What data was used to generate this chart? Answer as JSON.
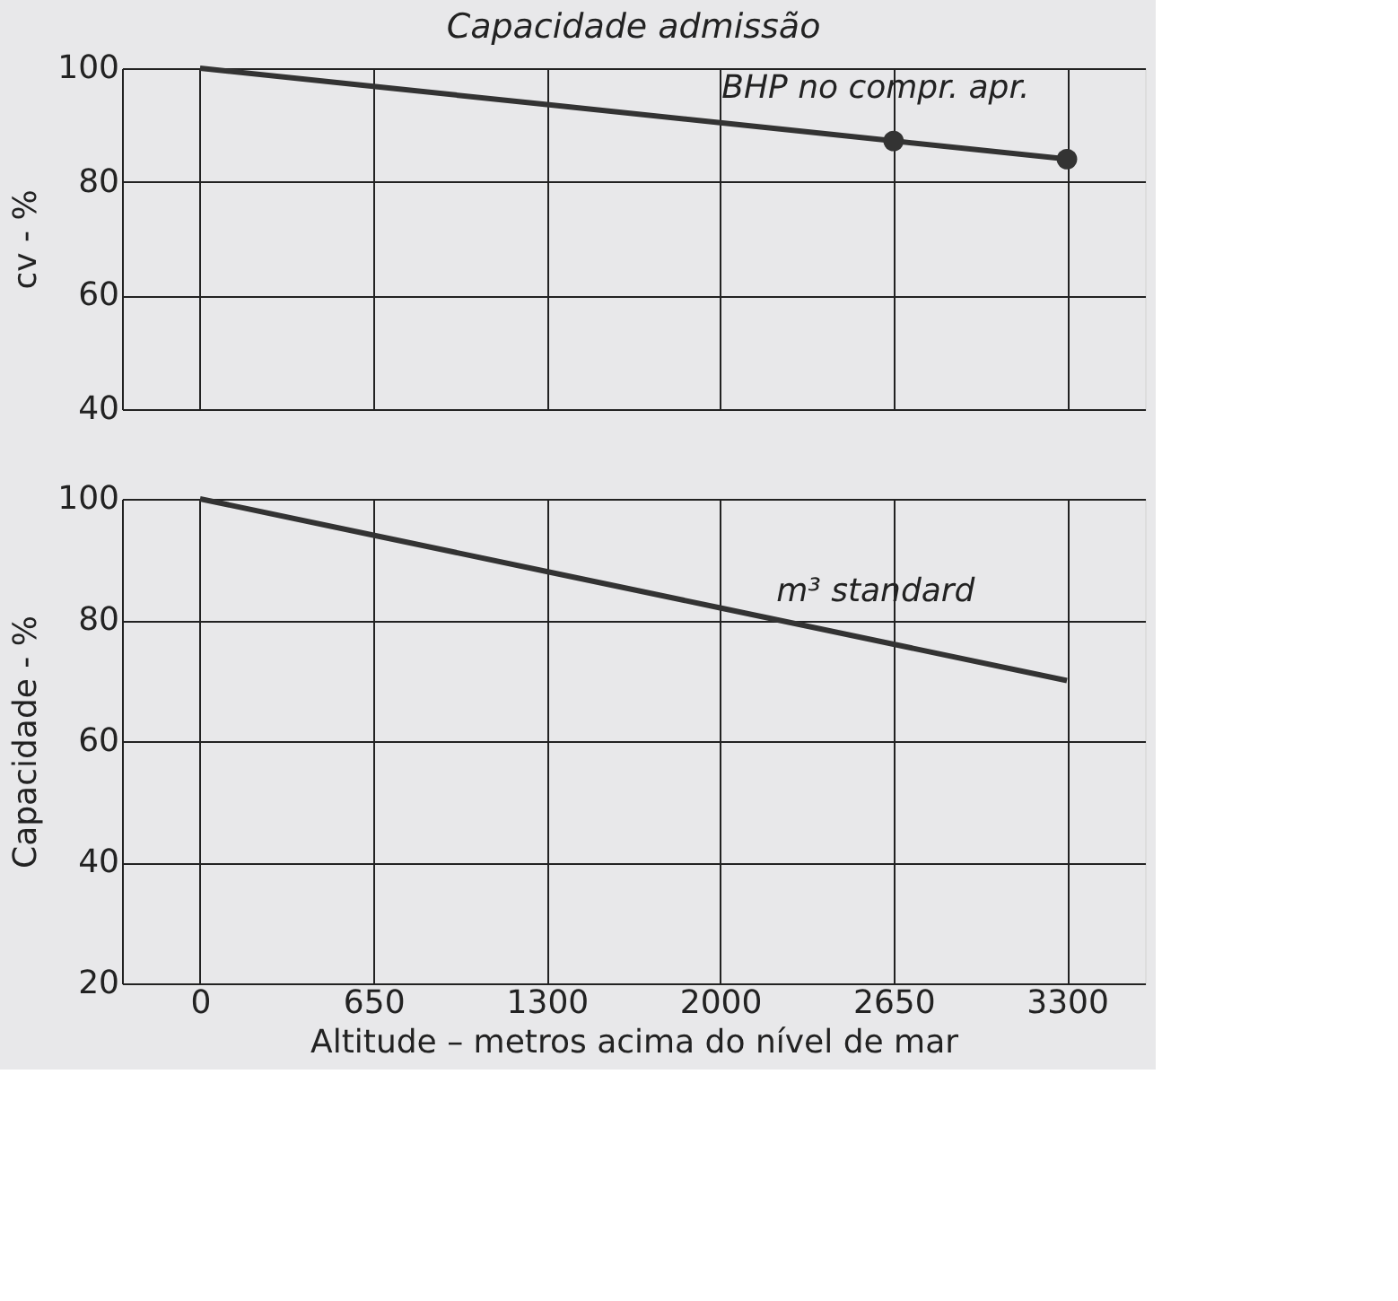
{
  "chart_data": [
    {
      "type": "line",
      "title": "Capacidade admissão",
      "ylabel": "cv - %",
      "categories": [
        "0",
        "650",
        "1300",
        "2000",
        "2650",
        "3300"
      ],
      "ylim": [
        40,
        100
      ],
      "yticks": [
        40,
        60,
        80,
        100
      ],
      "grid": true,
      "tick_labels": "y",
      "series": [
        {
          "name": "BHP no compr. apr.",
          "color": "#333333",
          "values": [
            100,
            96.8,
            93.6,
            90.4,
            87.2,
            84
          ],
          "marker": "none"
        },
        {
          "type": "scatter",
          "color": "#333333",
          "values": [
            null,
            null,
            null,
            null,
            87.2,
            84
          ],
          "marker": "circle"
        }
      ]
    },
    {
      "type": "line",
      "xlabel": "Altitude – metros acima do nível de mar",
      "ylabel": "Capacidade - %",
      "categories": [
        "0",
        "650",
        "1300",
        "2000",
        "2650",
        "3300"
      ],
      "ylim": [
        20,
        100
      ],
      "yticks": [
        20,
        40,
        60,
        80,
        100
      ],
      "grid": true,
      "series": [
        {
          "name": "m³ standard",
          "color": "#333333",
          "values": [
            100,
            94,
            88,
            82,
            76,
            70
          ],
          "marker": "none"
        }
      ]
    }
  ]
}
